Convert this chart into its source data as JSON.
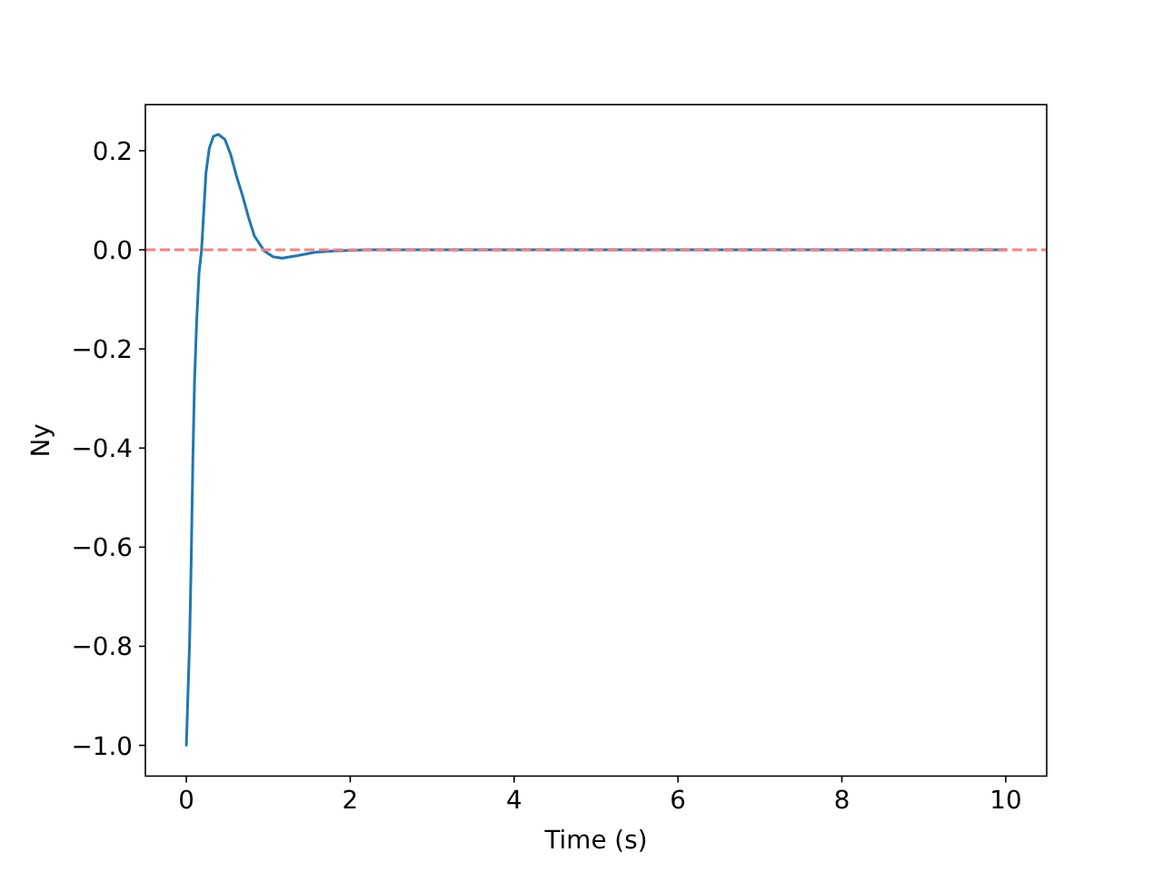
{
  "chart_data": {
    "type": "line",
    "xlabel": "Time (s)",
    "ylabel": "Ny",
    "x": [
      0,
      0.04,
      0.06,
      0.08,
      0.1,
      0.126,
      0.155,
      0.186,
      0.21,
      0.24,
      0.28,
      0.33,
      0.39,
      0.47,
      0.54,
      0.61,
      0.69,
      0.76,
      0.83,
      0.95,
      1.06,
      1.17,
      1.35,
      1.57,
      1.8,
      2.2,
      3,
      4,
      5,
      6,
      7,
      8,
      9,
      10
    ],
    "series": [
      {
        "color": "#1f77b4",
        "values": [
          -1,
          -0.79,
          -0.62,
          -0.42,
          -0.265,
          -0.144,
          -0.046,
          0,
          0.07,
          0.156,
          0.205,
          0.229,
          0.233,
          0.223,
          0.193,
          0.15,
          0.107,
          0.065,
          0.028,
          -0.002,
          -0.014,
          -0.017,
          -0.012,
          -0.005,
          -0.002,
          0,
          0,
          0,
          0,
          0,
          0,
          0,
          0,
          0
        ]
      }
    ],
    "xlim": [
      -0.5,
      10.5
    ],
    "ylim": [
      -1.062,
      0.293
    ],
    "xticks": [
      0,
      2,
      4,
      6,
      8,
      10
    ],
    "yticks": [
      {
        "value": -1,
        "label": "−1.0"
      },
      {
        "value": -0.8,
        "label": "−0.8"
      },
      {
        "value": -0.6,
        "label": "−0.6"
      },
      {
        "value": -0.4,
        "label": "−0.4"
      },
      {
        "value": -0.2,
        "label": "−0.2"
      },
      {
        "value": 0,
        "label": "0.0"
      },
      {
        "value": 0.2,
        "label": "0.2"
      }
    ],
    "ref_lines": [
      {
        "axis": "y",
        "value": 0,
        "color": "#ff8080",
        "line_style": "dashed"
      }
    ]
  }
}
